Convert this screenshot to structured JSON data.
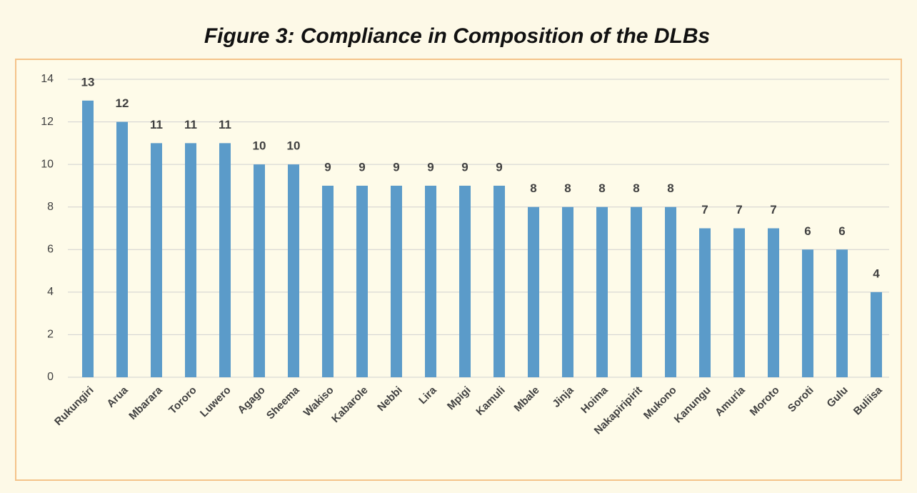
{
  "chart_data": {
    "type": "bar",
    "title": "Figure 3: Compliance in Composition of the DLBs",
    "categories": [
      "Rukungiri",
      "Arua",
      "Mbarara",
      "Tororo",
      "Luwero",
      "Agago",
      "Sheema",
      "Wakiso",
      "Kabarole",
      "Nebbi",
      "Lira",
      "Mpigi",
      "Kamuli",
      "Mbale",
      "Jinja",
      "Hoima",
      "Nakapiripirit",
      "Mukono",
      "Kanungu",
      "Amuria",
      "Moroto",
      "Soroti",
      "Gulu",
      "Buliisa"
    ],
    "values": [
      13,
      12,
      11,
      11,
      11,
      10,
      10,
      9,
      9,
      9,
      9,
      9,
      9,
      8,
      8,
      8,
      8,
      8,
      7,
      7,
      7,
      6,
      6,
      4
    ],
    "color": "#5b9bc9",
    "ylim": [
      0,
      14
    ],
    "yticks": [
      0,
      2,
      4,
      6,
      8,
      10,
      12,
      14
    ],
    "grid": true
  }
}
